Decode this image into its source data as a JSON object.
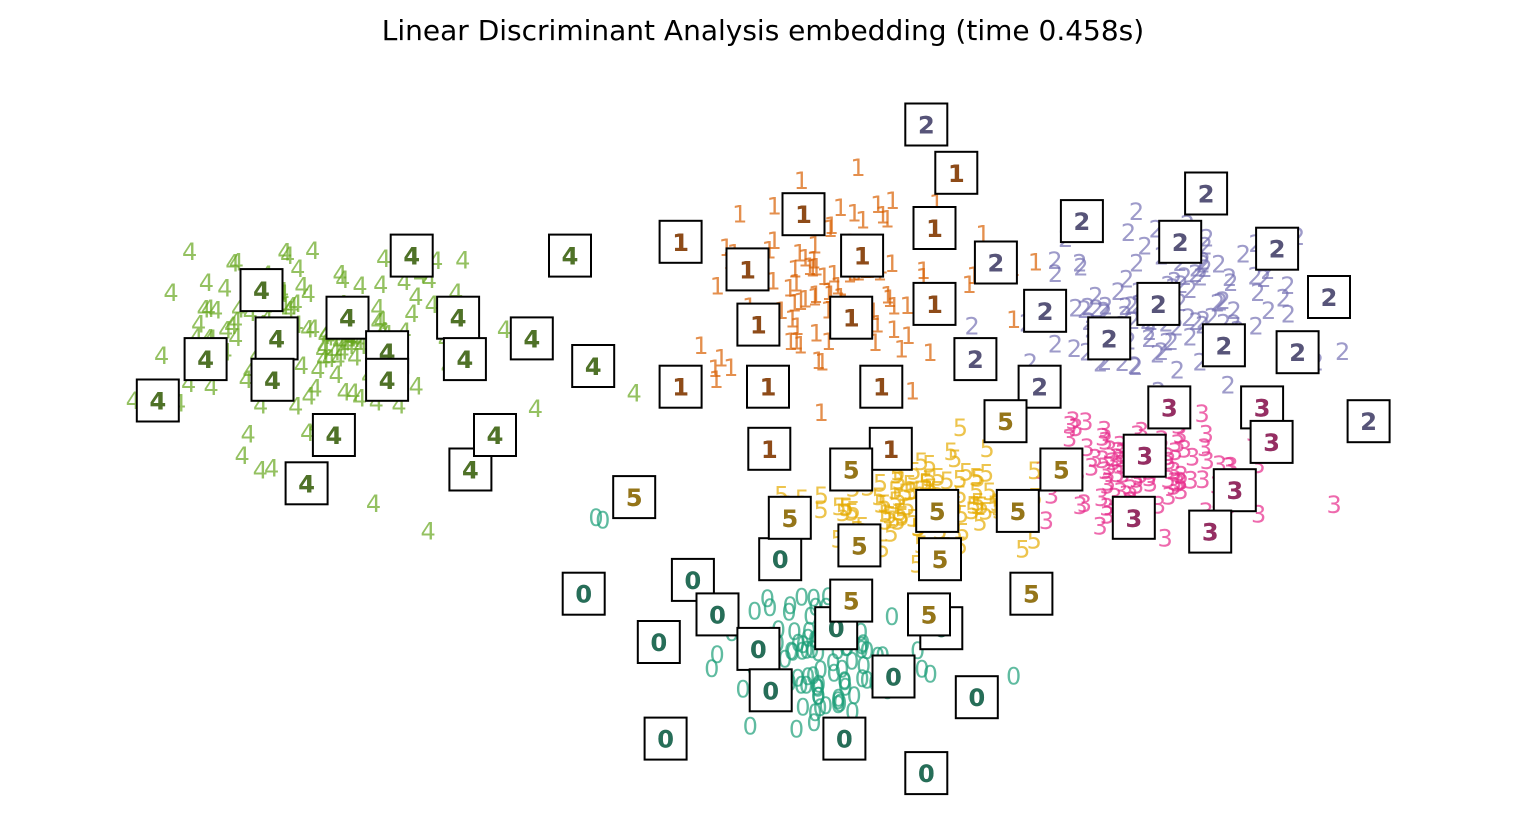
{
  "chart_data": {
    "type": "scatter",
    "title": "Linear Discriminant Analysis embedding (time 0.458s)",
    "xlabel": "",
    "ylabel": "",
    "axes_visible": false,
    "grid": false,
    "xlim": [
      0,
      1
    ],
    "ylim": [
      0,
      1
    ],
    "point_marker": "digit-text",
    "colors": {
      "0": "#1b9e77",
      "1": "#d95f02",
      "2": "#7570b3",
      "3": "#e7298a",
      "4": "#66a61e",
      "5": "#e6ab02"
    },
    "seed": 7,
    "clusters": [
      {
        "digit": "4",
        "center": [
          0.17,
          0.64
        ],
        "spread": [
          0.07,
          0.09
        ],
        "count": 130
      },
      {
        "digit": "1",
        "center": [
          0.545,
          0.72
        ],
        "spread": [
          0.06,
          0.095
        ],
        "count": 110
      },
      {
        "digit": "2",
        "center": [
          0.8,
          0.69
        ],
        "spread": [
          0.065,
          0.075
        ],
        "count": 120
      },
      {
        "digit": "3",
        "center": [
          0.79,
          0.45
        ],
        "spread": [
          0.055,
          0.05
        ],
        "count": 110
      },
      {
        "digit": "5",
        "center": [
          0.615,
          0.4
        ],
        "spread": [
          0.055,
          0.045
        ],
        "count": 110
      },
      {
        "digit": "0",
        "center": [
          0.54,
          0.17
        ],
        "spread": [
          0.045,
          0.06
        ],
        "count": 110
      }
    ],
    "extra_points": [
      {
        "digit": "4",
        "x": 0.406,
        "y": 0.56
      },
      {
        "digit": "4",
        "x": 0.215,
        "y": 0.4
      },
      {
        "digit": "4",
        "x": 0.255,
        "y": 0.36
      },
      {
        "digit": "0",
        "x": 0.378,
        "y": 0.38
      },
      {
        "digit": "0",
        "x": 0.383,
        "y": 0.376
      },
      {
        "digit": "0",
        "x": 0.684,
        "y": 0.15
      },
      {
        "digit": "1",
        "x": 0.466,
        "y": 0.58
      },
      {
        "digit": "1",
        "x": 0.7,
        "y": 0.75
      },
      {
        "digit": "2",
        "x": 0.925,
        "y": 0.62
      },
      {
        "digit": "3",
        "x": 0.795,
        "y": 0.35
      },
      {
        "digit": "5",
        "x": 0.645,
        "y": 0.51
      }
    ],
    "thumbnails": [
      {
        "digit": "4",
        "x": 0.057,
        "y": 0.55
      },
      {
        "digit": "4",
        "x": 0.092,
        "y": 0.61
      },
      {
        "digit": "4",
        "x": 0.133,
        "y": 0.71
      },
      {
        "digit": "4",
        "x": 0.144,
        "y": 0.64
      },
      {
        "digit": "4",
        "x": 0.141,
        "y": 0.58
      },
      {
        "digit": "4",
        "x": 0.166,
        "y": 0.43
      },
      {
        "digit": "4",
        "x": 0.186,
        "y": 0.5
      },
      {
        "digit": "4",
        "x": 0.196,
        "y": 0.67
      },
      {
        "digit": "4",
        "x": 0.225,
        "y": 0.62
      },
      {
        "digit": "4",
        "x": 0.225,
        "y": 0.58
      },
      {
        "digit": "4",
        "x": 0.243,
        "y": 0.76
      },
      {
        "digit": "4",
        "x": 0.277,
        "y": 0.67
      },
      {
        "digit": "4",
        "x": 0.282,
        "y": 0.61
      },
      {
        "digit": "4",
        "x": 0.286,
        "y": 0.45
      },
      {
        "digit": "4",
        "x": 0.304,
        "y": 0.5
      },
      {
        "digit": "4",
        "x": 0.331,
        "y": 0.64
      },
      {
        "digit": "4",
        "x": 0.359,
        "y": 0.76
      },
      {
        "digit": "4",
        "x": 0.376,
        "y": 0.6
      },
      {
        "digit": "5",
        "x": 0.406,
        "y": 0.41
      },
      {
        "digit": "1",
        "x": 0.44,
        "y": 0.78
      },
      {
        "digit": "1",
        "x": 0.44,
        "y": 0.57
      },
      {
        "digit": "0",
        "x": 0.369,
        "y": 0.27
      },
      {
        "digit": "0",
        "x": 0.424,
        "y": 0.2
      },
      {
        "digit": "0",
        "x": 0.429,
        "y": 0.06
      },
      {
        "digit": "0",
        "x": 0.449,
        "y": 0.29
      },
      {
        "digit": "0",
        "x": 0.467,
        "y": 0.24
      },
      {
        "digit": "0",
        "x": 0.497,
        "y": 0.19
      },
      {
        "digit": "0",
        "x": 0.506,
        "y": 0.13
      },
      {
        "digit": "0",
        "x": 0.513,
        "y": 0.32
      },
      {
        "digit": "0",
        "x": 0.554,
        "y": 0.22
      },
      {
        "digit": "0",
        "x": 0.56,
        "y": 0.06
      },
      {
        "digit": "0",
        "x": 0.596,
        "y": 0.15
      },
      {
        "digit": "0",
        "x": 0.62,
        "y": 0.01
      },
      {
        "digit": "0",
        "x": 0.631,
        "y": 0.22
      },
      {
        "digit": "0",
        "x": 0.657,
        "y": 0.12
      },
      {
        "digit": "1",
        "x": 0.489,
        "y": 0.74
      },
      {
        "digit": "1",
        "x": 0.497,
        "y": 0.66
      },
      {
        "digit": "1",
        "x": 0.504,
        "y": 0.57
      },
      {
        "digit": "1",
        "x": 0.505,
        "y": 0.48
      },
      {
        "digit": "1",
        "x": 0.53,
        "y": 0.82
      },
      {
        "digit": "1",
        "x": 0.565,
        "y": 0.67
      },
      {
        "digit": "1",
        "x": 0.573,
        "y": 0.76
      },
      {
        "digit": "1",
        "x": 0.587,
        "y": 0.57
      },
      {
        "digit": "1",
        "x": 0.594,
        "y": 0.48
      },
      {
        "digit": "1",
        "x": 0.626,
        "y": 0.8
      },
      {
        "digit": "1",
        "x": 0.626,
        "y": 0.69
      },
      {
        "digit": "1",
        "x": 0.642,
        "y": 0.88
      },
      {
        "digit": "2",
        "x": 0.62,
        "y": 0.95
      },
      {
        "digit": "2",
        "x": 0.671,
        "y": 0.75
      },
      {
        "digit": "2",
        "x": 0.656,
        "y": 0.61
      },
      {
        "digit": "2",
        "x": 0.703,
        "y": 0.57
      },
      {
        "digit": "2",
        "x": 0.707,
        "y": 0.68
      },
      {
        "digit": "2",
        "x": 0.734,
        "y": 0.81
      },
      {
        "digit": "2",
        "x": 0.754,
        "y": 0.64
      },
      {
        "digit": "2",
        "x": 0.79,
        "y": 0.69
      },
      {
        "digit": "2",
        "x": 0.806,
        "y": 0.78
      },
      {
        "digit": "2",
        "x": 0.825,
        "y": 0.85
      },
      {
        "digit": "2",
        "x": 0.838,
        "y": 0.63
      },
      {
        "digit": "2",
        "x": 0.877,
        "y": 0.77
      },
      {
        "digit": "2",
        "x": 0.892,
        "y": 0.62
      },
      {
        "digit": "2",
        "x": 0.915,
        "y": 0.7
      },
      {
        "digit": "2",
        "x": 0.944,
        "y": 0.52
      },
      {
        "digit": "3",
        "x": 0.78,
        "y": 0.47
      },
      {
        "digit": "3",
        "x": 0.798,
        "y": 0.54
      },
      {
        "digit": "3",
        "x": 0.772,
        "y": 0.38
      },
      {
        "digit": "3",
        "x": 0.846,
        "y": 0.42
      },
      {
        "digit": "3",
        "x": 0.866,
        "y": 0.54
      },
      {
        "digit": "3",
        "x": 0.873,
        "y": 0.49
      },
      {
        "digit": "3",
        "x": 0.828,
        "y": 0.36
      },
      {
        "digit": "5",
        "x": 0.678,
        "y": 0.52
      },
      {
        "digit": "5",
        "x": 0.719,
        "y": 0.45
      },
      {
        "digit": "5",
        "x": 0.687,
        "y": 0.39
      },
      {
        "digit": "5",
        "x": 0.52,
        "y": 0.38
      },
      {
        "digit": "5",
        "x": 0.565,
        "y": 0.45
      },
      {
        "digit": "5",
        "x": 0.571,
        "y": 0.34
      },
      {
        "digit": "5",
        "x": 0.565,
        "y": 0.26
      },
      {
        "digit": "5",
        "x": 0.628,
        "y": 0.39
      },
      {
        "digit": "5",
        "x": 0.63,
        "y": 0.32
      },
      {
        "digit": "5",
        "x": 0.622,
        "y": 0.24
      },
      {
        "digit": "5",
        "x": 0.697,
        "y": 0.27
      }
    ]
  }
}
